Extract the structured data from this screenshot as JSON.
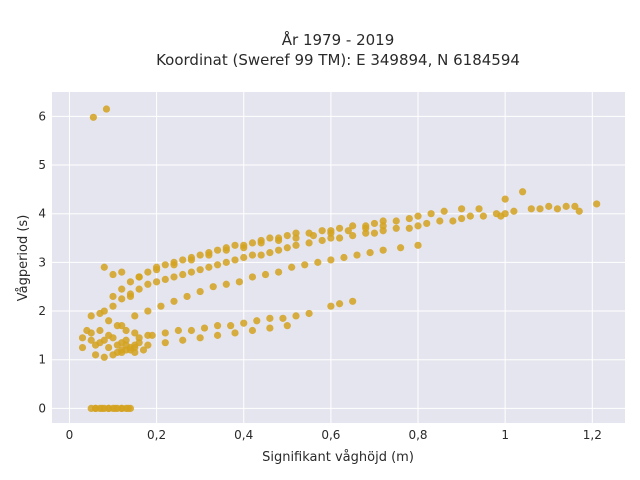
{
  "chart_data": {
    "type": "scatter",
    "title_line1": "År 1979 - 2019",
    "title_line2": "Koordinat (Sweref 99 TM): E 349894, N 6184594",
    "xlabel": "Signifikant våghöjd (m)",
    "ylabel": "Vågperiod (s)",
    "xlim": [
      -0.04,
      1.275
    ],
    "ylim": [
      -0.3,
      6.5
    ],
    "x_ticks": [
      0,
      0.2,
      0.4,
      0.6,
      0.8,
      1,
      1.2
    ],
    "x_tick_labels": [
      "0",
      "0,2",
      "0,4",
      "0,6",
      "0,8",
      "1",
      "1,2"
    ],
    "y_ticks": [
      0,
      1,
      2,
      3,
      4,
      5,
      6
    ],
    "y_tick_labels": [
      "0",
      "1",
      "2",
      "3",
      "4",
      "5",
      "6"
    ],
    "grid": true,
    "plot_background": "#e5e5ef",
    "marker_color": "#d4a21e",
    "series": [
      {
        "x": [
          0.05,
          0.06,
          0.07,
          0.08,
          0.09,
          0.1,
          0.11,
          0.12,
          0.13,
          0.14,
          0.06,
          0.075,
          0.09,
          0.105,
          0.12,
          0.135,
          0.055,
          0.085,
          0.03,
          0.05,
          0.07,
          0.09,
          0.11,
          0.13,
          0.15,
          0.04,
          0.06,
          0.08,
          0.1,
          0.12,
          0.14,
          0.16,
          0.05,
          0.07,
          0.09,
          0.11,
          0.13,
          0.15,
          0.18,
          0.06,
          0.08,
          0.1,
          0.12,
          0.14,
          0.03,
          0.05,
          0.07,
          0.09,
          0.11,
          0.13,
          0.15,
          0.17,
          0.08,
          0.1,
          0.12,
          0.14,
          0.16,
          0.18,
          0.2,
          0.22,
          0.24,
          0.26,
          0.28,
          0.3,
          0.32,
          0.34,
          0.36,
          0.38,
          0.4,
          0.42,
          0.44,
          0.46,
          0.48,
          0.5,
          0.52,
          0.55,
          0.58,
          0.6,
          0.62,
          0.65,
          0.68,
          0.7,
          0.72,
          0.75,
          0.78,
          0.8,
          0.82,
          0.85,
          0.88,
          0.9,
          0.92,
          0.95,
          0.98,
          1.0,
          0.1,
          0.12,
          0.14,
          0.16,
          0.18,
          0.2,
          0.22,
          0.24,
          0.26,
          0.28,
          0.3,
          0.32,
          0.34,
          0.36,
          0.38,
          0.4,
          0.42,
          0.44,
          0.46,
          0.48,
          0.5,
          0.52,
          0.55,
          0.58,
          0.6,
          0.62,
          0.65,
          0.68,
          0.7,
          0.72,
          0.75,
          0.78,
          0.8,
          0.83,
          0.86,
          0.9,
          0.94,
          0.12,
          0.15,
          0.18,
          0.21,
          0.24,
          0.27,
          0.3,
          0.33,
          0.36,
          0.39,
          0.42,
          0.45,
          0.48,
          0.51,
          0.54,
          0.57,
          0.6,
          0.63,
          0.66,
          0.69,
          0.72,
          0.76,
          0.8,
          0.16,
          0.2,
          0.24,
          0.28,
          0.32,
          0.36,
          0.4,
          0.44,
          0.48,
          0.52,
          0.56,
          0.6,
          0.64,
          0.68,
          0.72,
          0.13,
          0.16,
          0.19,
          0.22,
          0.25,
          0.28,
          0.31,
          0.34,
          0.37,
          0.4,
          0.43,
          0.46,
          0.49,
          0.52,
          0.55,
          0.12,
          0.15,
          0.18,
          0.22,
          0.26,
          0.3,
          0.34,
          0.38,
          0.42,
          0.46,
          0.5,
          0.08,
          0.1,
          0.12,
          0.14,
          0.6,
          0.62,
          0.65,
          0.99,
          1.04,
          1.06,
          1.08,
          1.1,
          1.12,
          1.14,
          1.16,
          1.17,
          1.21,
          1.0,
          1.02
        ],
        "y": [
          0,
          0,
          0,
          0,
          0,
          0,
          0,
          0,
          0,
          0,
          0,
          0,
          0,
          0,
          0,
          0,
          5.98,
          6.15,
          1.45,
          1.55,
          1.35,
          1.25,
          1.15,
          1.2,
          1.3,
          1.6,
          1.1,
          1.05,
          1.1,
          1.15,
          1.2,
          1.35,
          1.9,
          1.95,
          1.8,
          1.7,
          1.6,
          1.55,
          1.5,
          1.3,
          1.4,
          1.45,
          1.35,
          1.25,
          1.25,
          1.4,
          1.6,
          1.5,
          1.3,
          1.4,
          1.15,
          1.2,
          2.0,
          2.1,
          2.25,
          2.35,
          2.45,
          2.55,
          2.6,
          2.65,
          2.7,
          2.75,
          2.8,
          2.85,
          2.9,
          2.95,
          3.0,
          3.05,
          3.1,
          3.15,
          3.15,
          3.2,
          3.25,
          3.3,
          3.35,
          3.4,
          3.45,
          3.5,
          3.5,
          3.55,
          3.6,
          3.6,
          3.65,
          3.7,
          3.7,
          3.75,
          3.8,
          3.85,
          3.85,
          3.9,
          3.95,
          3.95,
          4.0,
          4.0,
          2.3,
          2.45,
          2.6,
          2.7,
          2.8,
          2.9,
          2.95,
          3.0,
          3.05,
          3.1,
          3.15,
          3.2,
          3.25,
          3.3,
          3.35,
          3.35,
          3.4,
          3.45,
          3.5,
          3.5,
          3.55,
          3.6,
          3.6,
          3.65,
          3.65,
          3.7,
          3.75,
          3.75,
          3.8,
          3.85,
          3.85,
          3.9,
          3.95,
          4.0,
          4.05,
          4.1,
          4.1,
          1.7,
          1.9,
          2.0,
          2.1,
          2.2,
          2.3,
          2.4,
          2.5,
          2.55,
          2.6,
          2.7,
          2.75,
          2.8,
          2.9,
          2.95,
          3.0,
          3.05,
          3.1,
          3.15,
          3.2,
          3.25,
          3.3,
          3.35,
          2.7,
          2.85,
          2.95,
          3.05,
          3.15,
          3.25,
          3.3,
          3.4,
          3.45,
          3.5,
          3.55,
          3.6,
          3.65,
          3.7,
          3.75,
          1.3,
          1.45,
          1.5,
          1.55,
          1.6,
          1.6,
          1.65,
          1.7,
          1.7,
          1.75,
          1.8,
          1.85,
          1.85,
          1.9,
          1.95,
          1.2,
          1.25,
          1.3,
          1.35,
          1.4,
          1.45,
          1.5,
          1.55,
          1.6,
          1.65,
          1.7,
          2.9,
          2.75,
          2.8,
          2.3,
          2.1,
          2.15,
          2.2,
          3.95,
          4.45,
          4.1,
          4.1,
          4.15,
          4.1,
          4.15,
          4.15,
          4.05,
          4.2,
          4.3,
          4.05
        ]
      }
    ]
  }
}
